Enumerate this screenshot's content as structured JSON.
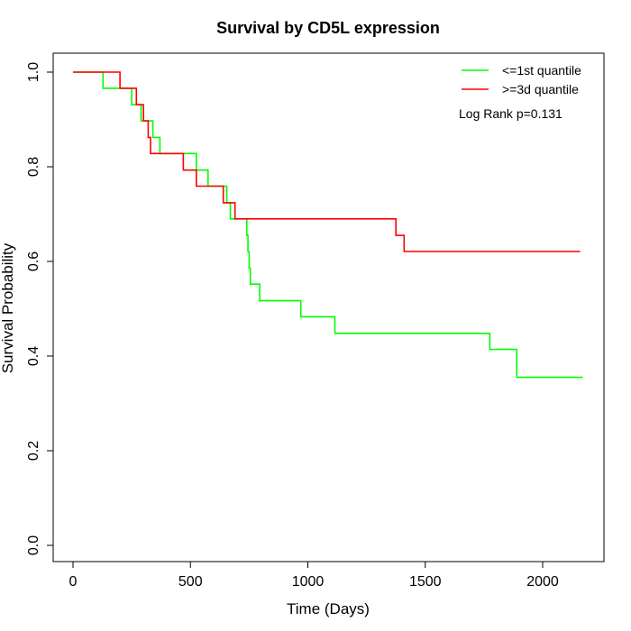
{
  "chart_data": {
    "type": "line",
    "title": "Survival by CD5L expression",
    "xlabel": "Time (Days)",
    "ylabel": "Survival Probability",
    "xlim": [
      0,
      2170
    ],
    "ylim": [
      0,
      1.0
    ],
    "xticks": [
      0,
      500,
      1000,
      1500,
      2000
    ],
    "yticks": [
      0.0,
      0.2,
      0.4,
      0.6,
      0.8,
      1.0
    ],
    "xtick_labels": [
      "0",
      "500",
      "1000",
      "1500",
      "2000"
    ],
    "ytick_labels": [
      "0.0",
      "0.2",
      "0.4",
      "0.6",
      "0.8",
      "1.0"
    ],
    "grid": false,
    "legend_position": "top-right",
    "annotation": "Log Rank p=0.131",
    "series": [
      {
        "name": "<=1st quantile",
        "color": "#00ff00",
        "step": true,
        "x": [
          0,
          128,
          250,
          290,
          340,
          370,
          525,
          575,
          655,
          670,
          740,
          745,
          750,
          755,
          770,
          795,
          970,
          1115,
          1775,
          1890,
          2170
        ],
        "y": [
          1.0,
          0.966,
          0.931,
          0.897,
          0.862,
          0.828,
          0.793,
          0.759,
          0.724,
          0.69,
          0.655,
          0.621,
          0.586,
          0.552,
          0.552,
          0.517,
          0.483,
          0.448,
          0.414,
          0.355,
          0.355
        ]
      },
      {
        "name": ">=3d quantile",
        "color": "#ff0000",
        "step": true,
        "x": [
          0,
          200,
          270,
          300,
          320,
          330,
          470,
          525,
          640,
          690,
          1375,
          1410,
          2160
        ],
        "y": [
          1.0,
          0.966,
          0.931,
          0.897,
          0.862,
          0.828,
          0.793,
          0.759,
          0.724,
          0.69,
          0.655,
          0.621,
          0.621
        ]
      }
    ]
  }
}
